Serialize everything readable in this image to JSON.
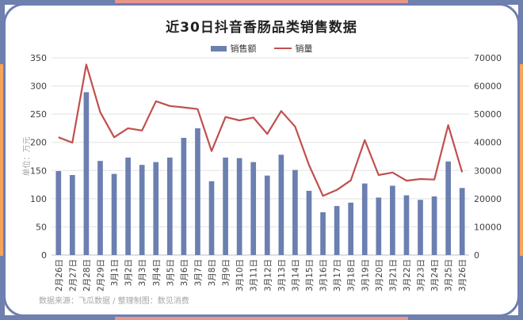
{
  "title": "近30日抖音香肠品类销售数据",
  "source": "数据来源：飞瓜数据 / 整理制图：数见消费",
  "colors": {
    "frame_blue": "#6e7fb0",
    "frame_orange": "#f4a55b",
    "frame_pink": "#e8968a",
    "bar": "#6b7fb0",
    "line": "#c0504d"
  },
  "chart_data": {
    "type": "bar+line",
    "categories": [
      "2月26日",
      "2月27日",
      "2月28日",
      "2月29日",
      "3月1日",
      "3月2日",
      "3月3日",
      "3月4日",
      "3月5日",
      "3月6日",
      "3月7日",
      "3月8日",
      "3月9日",
      "3月10日",
      "3月11日",
      "3月12日",
      "3月13日",
      "3月14日",
      "3月15日",
      "3月16日",
      "3月17日",
      "3月18日",
      "3月19日",
      "3月20日",
      "3月21日",
      "3月22日",
      "3月23日",
      "3月24日",
      "3月25日",
      "3月26日"
    ],
    "series": [
      {
        "name": "销售额",
        "type": "bar",
        "axis": "left",
        "values": [
          149,
          142,
          289,
          167,
          144,
          173,
          160,
          165,
          173,
          208,
          225,
          131,
          173,
          172,
          165,
          141,
          178,
          151,
          114,
          76,
          87,
          93,
          127,
          102,
          123,
          106,
          98,
          104,
          166,
          119
        ]
      },
      {
        "name": "销量",
        "type": "line",
        "axis": "right",
        "values": [
          41800,
          39900,
          67600,
          50700,
          41800,
          45000,
          44200,
          54600,
          52900,
          52400,
          51800,
          36900,
          49000,
          47800,
          48800,
          43000,
          51100,
          45600,
          31900,
          21000,
          23100,
          26500,
          40800,
          28400,
          29300,
          26400,
          27000,
          26800,
          46100,
          29400
        ]
      }
    ],
    "ylabel": "单位：万元",
    "ylim_left": [
      0,
      350
    ],
    "yticks_left": [
      0,
      50,
      100,
      150,
      200,
      250,
      300,
      350
    ],
    "ylim_right": [
      0,
      70000
    ],
    "yticks_right": [
      0,
      10000,
      20000,
      30000,
      40000,
      50000,
      60000,
      70000
    ],
    "grid": true,
    "legend": "top"
  }
}
